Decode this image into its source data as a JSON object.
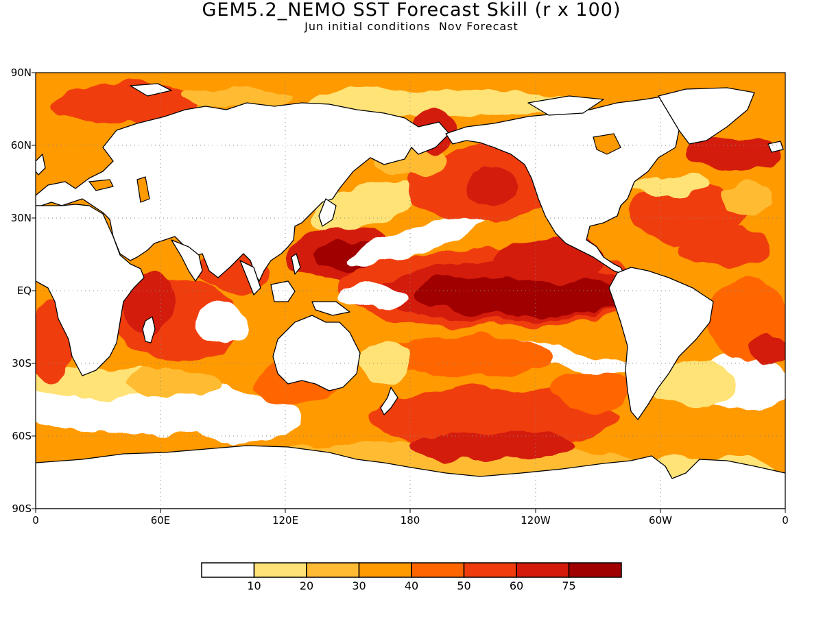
{
  "title": "GEM5.2_NEMO SST Forecast Skill (r x 100)",
  "subtitle": "Jun initial conditions  Nov Forecast",
  "lat_axis": [
    "90N",
    "60N",
    "30N",
    "EQ",
    "30S",
    "60S",
    "90S"
  ],
  "lon_axis": [
    "0",
    "60E",
    "120E",
    "180",
    "120W",
    "60W",
    "0"
  ],
  "colorbar": {
    "labels": [
      "10",
      "20",
      "30",
      "40",
      "50",
      "60",
      "75"
    ],
    "colors": [
      "#ffffff",
      "#ffe377",
      "#ffbb33",
      "#ff9a00",
      "#ff6600",
      "#f03c0c",
      "#d41a0a",
      "#a00000"
    ]
  },
  "land_color": "#ffffff",
  "coast_color": "#000000",
  "grid_style": "dotted"
}
